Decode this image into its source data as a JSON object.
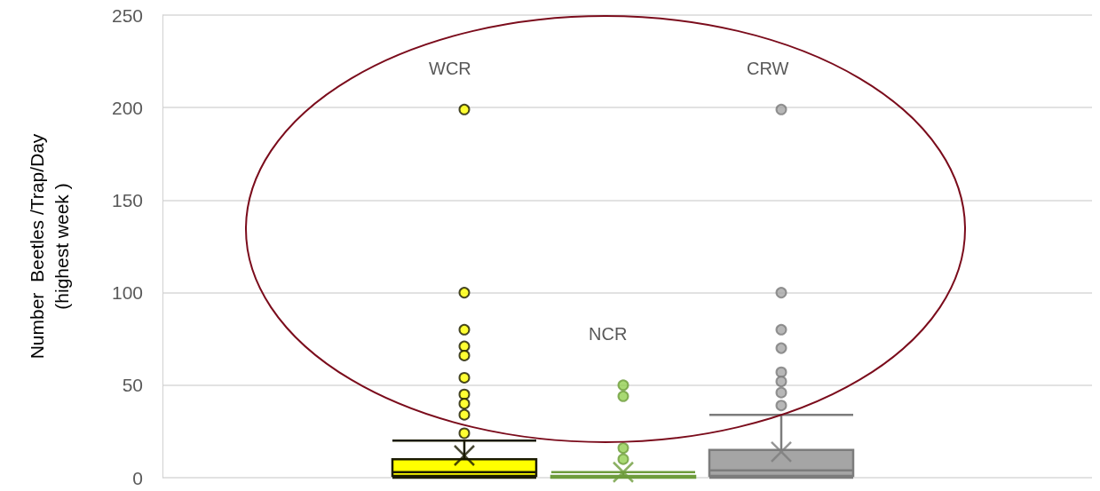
{
  "chart_data": {
    "type": "box",
    "ylabel": "Number  Beetles /Trap/Day\n(highest week )",
    "categories": [
      null
    ],
    "annotations": [
      "WCR",
      "NCR",
      "CRW"
    ],
    "ylim": [
      0,
      250
    ],
    "yticks": [
      0,
      50,
      100,
      150,
      200,
      250
    ],
    "grid": "y",
    "legend": false,
    "series": [
      {
        "color": "#ffff00",
        "boxes": [
          {
            "low": 0,
            "q1": 1,
            "median": 3,
            "q3": 10,
            "high": 20,
            "mean": 12,
            "outliers": [
              199,
              100,
              80,
              71,
              66,
              54,
              45,
              40,
              34,
              24
            ]
          }
        ]
      },
      {
        "color": "#92d050",
        "boxes": [
          {
            "low": 0,
            "q1": 0,
            "median": 0,
            "q3": 1,
            "high": 3,
            "mean": 3,
            "outliers": [
              50,
              44,
              16,
              10
            ]
          }
        ]
      },
      {
        "color": "#a5a5a5",
        "boxes": [
          {
            "low": 0,
            "q1": 1,
            "median": 4,
            "q3": 15,
            "high": 34,
            "mean": 14,
            "outliers": [
              199,
              100,
              80,
              70,
              57,
              52,
              46,
              39
            ]
          }
        ]
      }
    ]
  }
}
